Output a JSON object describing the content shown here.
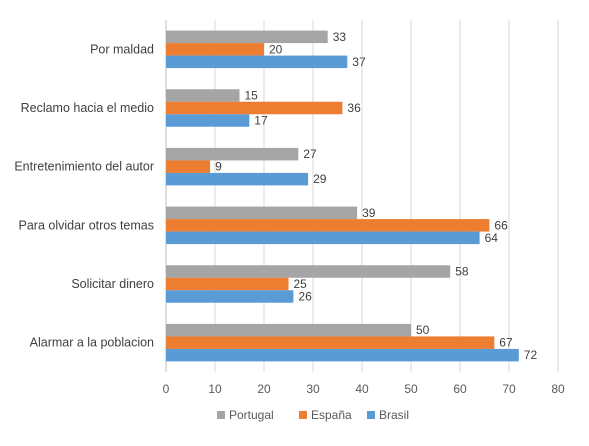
{
  "chart_data": {
    "type": "bar",
    "orientation": "horizontal",
    "categories": [
      "Por maldad",
      "Reclamo hacia el medio",
      "Entretenimiento del autor",
      "Para olvidar otros temas",
      "Solicitar dinero",
      "Alarmar a la poblacion"
    ],
    "series": [
      {
        "name": "Portugal",
        "color": "#a5a5a5",
        "values": [
          33,
          15,
          27,
          39,
          58,
          50
        ]
      },
      {
        "name": "España",
        "color": "#ed7d31",
        "values": [
          20,
          36,
          9,
          66,
          25,
          67
        ]
      },
      {
        "name": "Brasil",
        "color": "#5b9bd5",
        "values": [
          37,
          17,
          29,
          64,
          26,
          72
        ]
      }
    ],
    "xlim": [
      0,
      80
    ],
    "xticks": [
      0,
      10,
      20,
      30,
      40,
      50,
      60,
      70,
      80
    ],
    "grid": "vertical",
    "legend_position": "bottom",
    "data_labels": true,
    "title": "",
    "xlabel": "",
    "ylabel": ""
  }
}
